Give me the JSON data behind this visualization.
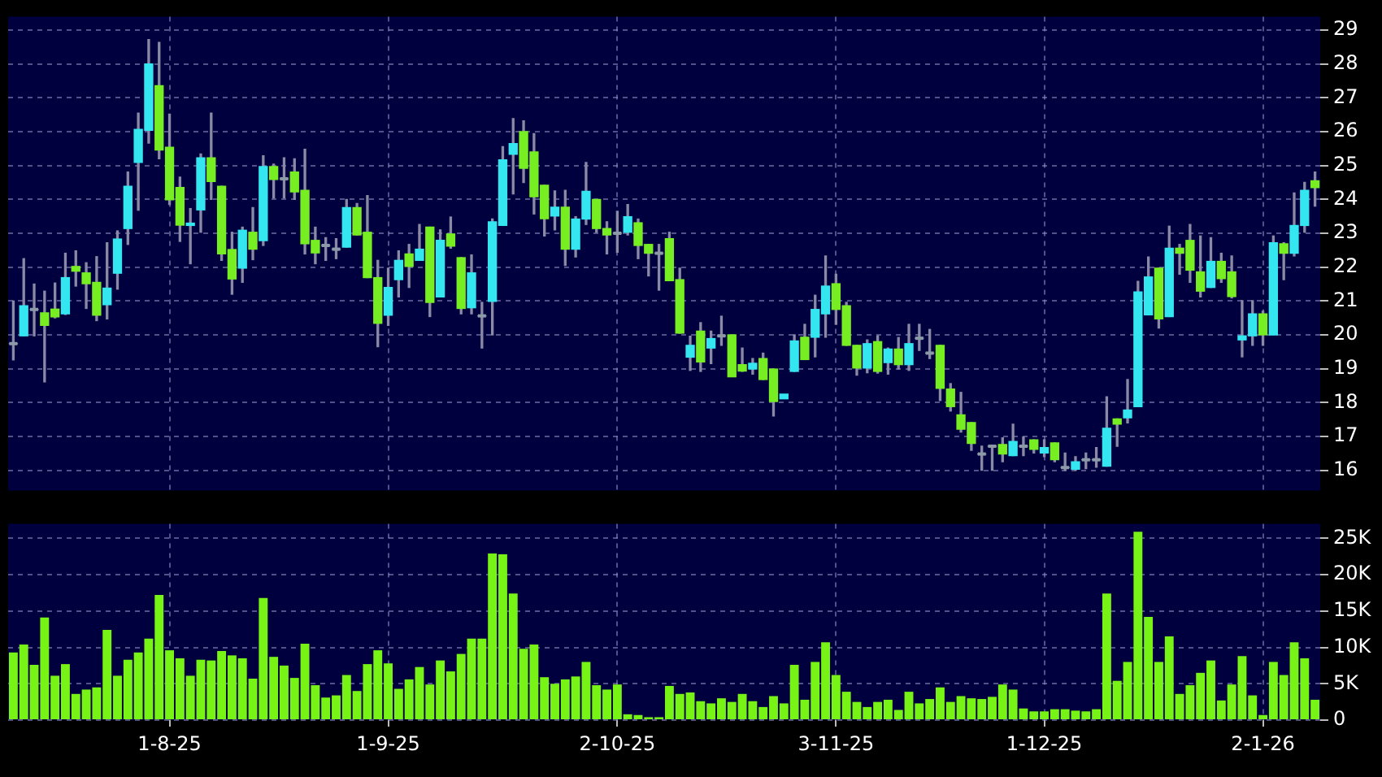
{
  "chart_data": [
    {
      "type": "candlestick",
      "categories": [
        null,
        null,
        null,
        null,
        null,
        null,
        null,
        null,
        null,
        null,
        null,
        null,
        null,
        null,
        null,
        null,
        null,
        null,
        null,
        null,
        null,
        null,
        null,
        null,
        null,
        null,
        null,
        null,
        null,
        null,
        null,
        null,
        null,
        null,
        null,
        null,
        null,
        null,
        null,
        null,
        null,
        null,
        null,
        null,
        null,
        null,
        null,
        null,
        null,
        null,
        null,
        null,
        null,
        null,
        null,
        null,
        null,
        null,
        null,
        null,
        null,
        null,
        null,
        null,
        null,
        null,
        null,
        null,
        null,
        null,
        null,
        null,
        null,
        null,
        null,
        null,
        null,
        null,
        null,
        null,
        null,
        null,
        null,
        null,
        null,
        null,
        null,
        null,
        null,
        null,
        null,
        null,
        null,
        null,
        null,
        null,
        null,
        null,
        null,
        null,
        null,
        null,
        null,
        null,
        null,
        null,
        null,
        null,
        null,
        null,
        null,
        null,
        null,
        null,
        null,
        null,
        null,
        null,
        null,
        null,
        null,
        null,
        null,
        null,
        null,
        null
      ],
      "ohlc": [
        [
          19.74,
          21.0,
          19.26,
          19.74
        ],
        [
          19.97,
          22.25,
          19.97,
          20.86
        ],
        [
          20.75,
          21.5,
          19.97,
          20.75
        ],
        [
          20.65,
          21.29,
          18.61,
          20.28
        ],
        [
          20.76,
          21.53,
          20.5,
          20.53
        ],
        [
          20.62,
          22.41,
          20.6,
          21.69
        ],
        [
          22.02,
          22.48,
          21.44,
          21.88
        ],
        [
          21.83,
          22.13,
          20.78,
          21.51
        ],
        [
          21.55,
          22.31,
          20.42,
          20.58
        ],
        [
          20.89,
          22.72,
          20.47,
          21.38
        ],
        [
          21.82,
          23.07,
          21.35,
          22.83
        ],
        [
          23.14,
          24.81,
          22.67,
          24.39
        ],
        [
          25.09,
          26.55,
          23.68,
          26.07
        ],
        [
          26.04,
          28.72,
          25.66,
          28.0
        ],
        [
          27.36,
          28.64,
          25.2,
          25.46
        ],
        [
          25.54,
          26.52,
          23.85,
          23.99
        ],
        [
          24.35,
          24.66,
          22.76,
          23.24
        ],
        [
          23.23,
          23.73,
          22.1,
          23.3
        ],
        [
          23.69,
          25.34,
          23.03,
          25.23
        ],
        [
          25.23,
          26.55,
          24.0,
          24.53
        ],
        [
          24.39,
          24.39,
          22.2,
          22.39
        ],
        [
          22.52,
          23.03,
          21.2,
          21.65
        ],
        [
          21.97,
          23.18,
          21.55,
          23.09
        ],
        [
          23.03,
          23.76,
          22.22,
          22.53
        ],
        [
          22.78,
          25.29,
          22.64,
          24.97
        ],
        [
          24.97,
          25.04,
          24.04,
          24.59
        ],
        [
          24.61,
          25.23,
          24.04,
          24.61
        ],
        [
          24.81,
          25.2,
          24.0,
          24.22
        ],
        [
          24.27,
          25.48,
          22.39,
          22.69
        ],
        [
          22.79,
          23.18,
          22.1,
          22.42
        ],
        [
          22.64,
          22.87,
          22.2,
          22.64
        ],
        [
          22.53,
          22.84,
          22.25,
          22.53
        ],
        [
          22.59,
          24.0,
          22.59,
          23.76
        ],
        [
          23.76,
          23.88,
          22.95,
          22.95
        ],
        [
          23.03,
          24.11,
          21.69,
          21.69
        ],
        [
          21.69,
          22.2,
          19.65,
          20.34
        ],
        [
          20.58,
          21.97,
          20.28,
          21.4
        ],
        [
          21.63,
          22.48,
          21.12,
          22.2
        ],
        [
          22.39,
          22.67,
          21.4,
          22.02
        ],
        [
          22.2,
          23.26,
          22.2,
          22.53
        ],
        [
          23.18,
          23.18,
          20.54,
          20.96
        ],
        [
          21.12,
          23.1,
          21.12,
          22.79
        ],
        [
          22.98,
          23.48,
          22.56,
          22.62
        ],
        [
          22.28,
          22.28,
          20.62,
          20.78
        ],
        [
          20.8,
          22.36,
          20.62,
          21.83
        ],
        [
          20.56,
          20.96,
          19.61,
          20.56
        ],
        [
          20.99,
          23.42,
          20.0,
          23.34
        ],
        [
          23.23,
          25.56,
          23.23,
          25.17
        ],
        [
          25.33,
          26.39,
          24.16,
          25.65
        ],
        [
          26.0,
          26.32,
          24.5,
          24.92
        ],
        [
          25.4,
          25.94,
          23.57,
          24.08
        ],
        [
          24.42,
          24.42,
          22.92,
          23.43
        ],
        [
          23.51,
          24.25,
          23.1,
          23.77
        ],
        [
          23.77,
          24.27,
          22.05,
          22.53
        ],
        [
          22.53,
          23.49,
          22.3,
          23.42
        ],
        [
          23.42,
          25.09,
          23.26,
          24.24
        ],
        [
          24.0,
          24.0,
          23.03,
          23.14
        ],
        [
          23.14,
          23.34,
          22.39,
          22.95
        ],
        [
          23.0,
          23.65,
          22.44,
          23.0
        ],
        [
          23.03,
          23.85,
          22.95,
          23.49
        ],
        [
          23.31,
          23.42,
          22.25,
          22.64
        ],
        [
          22.67,
          22.67,
          21.74,
          22.41
        ],
        [
          22.41,
          22.67,
          21.32,
          22.41
        ],
        [
          22.84,
          23.03,
          21.6,
          21.6
        ],
        [
          21.63,
          21.97,
          20.05,
          20.05
        ],
        [
          19.34,
          19.96,
          18.95,
          19.69
        ],
        [
          20.11,
          20.36,
          18.92,
          19.2
        ],
        [
          19.61,
          20.11,
          19.15,
          19.89
        ],
        [
          19.97,
          20.55,
          19.69,
          19.97
        ],
        [
          20.0,
          20.0,
          18.76,
          18.76
        ],
        [
          19.12,
          19.61,
          18.92,
          18.93
        ],
        [
          18.99,
          19.3,
          18.84,
          19.16
        ],
        [
          19.3,
          19.46,
          18.68,
          18.68
        ],
        [
          18.99,
          18.99,
          17.6,
          18.03
        ],
        [
          18.11,
          18.25,
          18.11,
          18.25
        ],
        [
          18.92,
          20.0,
          18.92,
          19.82
        ],
        [
          19.93,
          20.31,
          19.27,
          19.27
        ],
        [
          19.93,
          21.17,
          19.35,
          20.75
        ],
        [
          20.62,
          22.33,
          19.93,
          21.44
        ],
        [
          21.51,
          21.79,
          20.31,
          20.75
        ],
        [
          20.86,
          20.96,
          19.69,
          19.69
        ],
        [
          19.69,
          19.69,
          18.81,
          19.02
        ],
        [
          19.02,
          19.85,
          18.88,
          19.74
        ],
        [
          19.8,
          19.97,
          18.87,
          18.92
        ],
        [
          19.18,
          19.61,
          18.84,
          19.58
        ],
        [
          19.58,
          19.92,
          18.99,
          19.12
        ],
        [
          19.12,
          20.31,
          18.95,
          19.74
        ],
        [
          19.9,
          20.31,
          19.54,
          19.9
        ],
        [
          19.46,
          20.16,
          19.3,
          19.46
        ],
        [
          19.69,
          19.69,
          18.06,
          18.42
        ],
        [
          18.4,
          18.56,
          17.75,
          17.88
        ],
        [
          17.64,
          18.3,
          17.13,
          17.21
        ],
        [
          17.41,
          17.41,
          16.59,
          16.79
        ],
        [
          16.48,
          16.71,
          16.0,
          16.48
        ],
        [
          16.71,
          16.71,
          16.0,
          16.71
        ],
        [
          16.76,
          16.96,
          16.25,
          16.48
        ],
        [
          16.43,
          17.36,
          16.43,
          16.85
        ],
        [
          16.71,
          16.98,
          16.43,
          16.71
        ],
        [
          16.9,
          16.9,
          16.51,
          16.62
        ],
        [
          16.51,
          16.9,
          16.4,
          16.67
        ],
        [
          16.81,
          16.81,
          16.25,
          16.31
        ],
        [
          16.08,
          16.51,
          16.0,
          16.08
        ],
        [
          16.03,
          16.4,
          16.0,
          16.25
        ],
        [
          16.31,
          16.51,
          16.05,
          16.31
        ],
        [
          16.31,
          16.67,
          16.09,
          16.31
        ],
        [
          16.12,
          18.17,
          16.12,
          17.24
        ],
        [
          17.52,
          17.52,
          16.71,
          17.36
        ],
        [
          17.55,
          18.68,
          17.4,
          17.78
        ],
        [
          17.88,
          21.58,
          17.88,
          21.27
        ],
        [
          20.59,
          22.3,
          20.59,
          21.71
        ],
        [
          21.97,
          21.97,
          20.2,
          20.47
        ],
        [
          20.54,
          23.21,
          20.54,
          22.56
        ],
        [
          22.56,
          22.67,
          21.79,
          22.41
        ],
        [
          22.79,
          23.26,
          21.55,
          21.91
        ],
        [
          21.86,
          22.92,
          21.12,
          21.29
        ],
        [
          21.4,
          22.87,
          21.4,
          22.17
        ],
        [
          22.17,
          22.41,
          21.55,
          21.66
        ],
        [
          21.86,
          22.33,
          21.09,
          21.13
        ],
        [
          19.85,
          21.01,
          19.35,
          19.97
        ],
        [
          19.97,
          21.01,
          19.69,
          20.62
        ],
        [
          20.62,
          20.7,
          19.69,
          20.0
        ],
        [
          20.0,
          22.92,
          20.0,
          22.72
        ],
        [
          22.69,
          22.72,
          21.63,
          22.41
        ],
        [
          22.41,
          24.19,
          22.33,
          23.23
        ],
        [
          23.23,
          24.5,
          23.03,
          24.27
        ],
        [
          24.55,
          24.81,
          23.8,
          24.35
        ]
      ],
      "colors": [
        "#8c9aa8",
        "#33e6f0",
        "#8c9aa8",
        "#77ee22",
        "#77ee22",
        "#33e6f0",
        "#77ee22",
        "#77ee22",
        "#77ee22",
        "#33e6f0",
        "#33e6f0",
        "#33e6f0",
        "#33e6f0",
        "#33e6f0",
        "#77ee22",
        "#77ee22",
        "#77ee22",
        "#33e6f0",
        "#33e6f0",
        "#77ee22",
        "#77ee22",
        "#77ee22",
        "#33e6f0",
        "#77ee22",
        "#33e6f0",
        "#77ee22",
        "#8c9aa8",
        "#77ee22",
        "#77ee22",
        "#77ee22",
        "#8c9aa8",
        "#8c9aa8",
        "#33e6f0",
        "#77ee22",
        "#77ee22",
        "#77ee22",
        "#33e6f0",
        "#33e6f0",
        "#77ee22",
        "#33e6f0",
        "#77ee22",
        "#33e6f0",
        "#77ee22",
        "#77ee22",
        "#33e6f0",
        "#8c9aa8",
        "#33e6f0",
        "#33e6f0",
        "#33e6f0",
        "#77ee22",
        "#77ee22",
        "#77ee22",
        "#33e6f0",
        "#77ee22",
        "#33e6f0",
        "#33e6f0",
        "#77ee22",
        "#77ee22",
        "#8c9aa8",
        "#33e6f0",
        "#77ee22",
        "#77ee22",
        "#8c9aa8",
        "#77ee22",
        "#77ee22",
        "#33e6f0",
        "#77ee22",
        "#33e6f0",
        "#8c9aa8",
        "#77ee22",
        "#77ee22",
        "#33e6f0",
        "#77ee22",
        "#77ee22",
        "#33e6f0",
        "#33e6f0",
        "#77ee22",
        "#33e6f0",
        "#33e6f0",
        "#77ee22",
        "#77ee22",
        "#77ee22",
        "#33e6f0",
        "#77ee22",
        "#33e6f0",
        "#77ee22",
        "#33e6f0",
        "#8c9aa8",
        "#8c9aa8",
        "#77ee22",
        "#77ee22",
        "#77ee22",
        "#77ee22",
        "#8c9aa8",
        "#8c9aa8",
        "#77ee22",
        "#33e6f0",
        "#8c9aa8",
        "#77ee22",
        "#33e6f0",
        "#77ee22",
        "#8c9aa8",
        "#33e6f0",
        "#8c9aa8",
        "#8c9aa8",
        "#33e6f0",
        "#77ee22",
        "#33e6f0",
        "#33e6f0",
        "#33e6f0",
        "#77ee22",
        "#33e6f0",
        "#77ee22",
        "#77ee22",
        "#77ee22",
        "#33e6f0",
        "#77ee22",
        "#77ee22",
        "#33e6f0",
        "#33e6f0",
        "#77ee22",
        "#33e6f0",
        "#77ee22",
        "#33e6f0",
        "#33e6f0",
        "#77ee22"
      ],
      "ylim": [
        15.4,
        29.4
      ],
      "yticks": [
        16,
        17,
        18,
        19,
        20,
        21,
        22,
        23,
        24,
        25,
        26,
        27,
        28,
        29
      ],
      "grid": true,
      "tick_labels": "y"
    },
    {
      "type": "bar",
      "categories": [
        null,
        null,
        null,
        null,
        null,
        null,
        null,
        null,
        null,
        null,
        null,
        null,
        null,
        null,
        null,
        "1-8-25",
        null,
        null,
        null,
        null,
        null,
        null,
        null,
        null,
        null,
        null,
        null,
        null,
        null,
        null,
        null,
        null,
        null,
        null,
        null,
        null,
        "1-9-25",
        null,
        null,
        null,
        null,
        null,
        null,
        null,
        null,
        null,
        null,
        null,
        null,
        null,
        null,
        null,
        null,
        null,
        null,
        null,
        null,
        null,
        "2-10-25",
        null,
        null,
        null,
        null,
        null,
        null,
        null,
        null,
        null,
        null,
        null,
        null,
        null,
        null,
        null,
        null,
        null,
        null,
        null,
        null,
        "3-11-25",
        null,
        null,
        null,
        null,
        null,
        null,
        null,
        null,
        null,
        null,
        null,
        null,
        null,
        null,
        null,
        null,
        null,
        null,
        null,
        "1-12-25",
        null,
        null,
        null,
        null,
        null,
        null,
        null,
        null,
        null,
        null,
        null,
        null,
        null,
        null,
        null,
        null,
        null,
        null,
        null,
        null,
        "2-1-26",
        null,
        null,
        null,
        null,
        null
      ],
      "values": [
        9300,
        10400,
        7600,
        14100,
        6100,
        7700,
        3600,
        4200,
        4500,
        12400,
        6100,
        8300,
        9300,
        11200,
        17200,
        9600,
        8500,
        6100,
        8300,
        8200,
        9500,
        8900,
        8500,
        5700,
        16800,
        8700,
        7500,
        5800,
        10500,
        4800,
        3100,
        3400,
        6200,
        4000,
        7700,
        9600,
        7800,
        4300,
        5600,
        7300,
        4900,
        8200,
        6700,
        9100,
        11200,
        11200,
        22900,
        22800,
        17400,
        9800,
        10400,
        5900,
        5000,
        5600,
        6000,
        8000,
        4800,
        4200,
        4900,
        800,
        700,
        400,
        400,
        4700,
        3600,
        3800,
        2600,
        2300,
        3000,
        2500,
        3600,
        2600,
        1800,
        3300,
        2300,
        7600,
        2800,
        8000,
        10700,
        6200,
        3900,
        2500,
        1800,
        2500,
        2800,
        1400,
        3900,
        2300,
        2900,
        4500,
        2500,
        3300,
        3000,
        2900,
        3200,
        4900,
        4200,
        1600,
        1200,
        1200,
        1500,
        1500,
        1300,
        1200,
        1500,
        17400,
        5400,
        8000,
        25900,
        14200,
        8000,
        11500,
        3600,
        4800,
        6500,
        8200,
        2700,
        4900,
        8800,
        3400,
        700,
        8000,
        6200,
        10700,
        8500,
        2800
      ],
      "color": "#77f316",
      "ylim": [
        0,
        27000
      ],
      "yticks": [
        0,
        {
          "value": 5000,
          "label": "5K"
        },
        {
          "value": 10000,
          "label": "10K"
        },
        {
          "value": 15000,
          "label": "15K"
        },
        {
          "value": 20000,
          "label": "20K"
        },
        {
          "value": 25000,
          "label": "25K"
        }
      ],
      "grid": true
    }
  ]
}
